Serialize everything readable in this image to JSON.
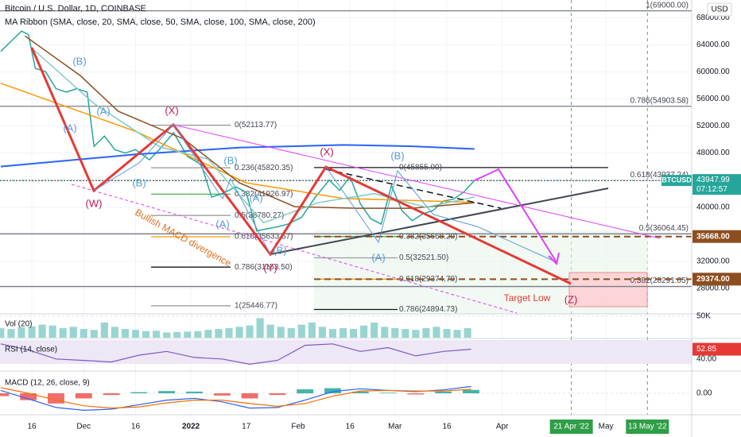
{
  "header": {
    "title": "Bitcoin / U.S. Dollar, 1D, COINBASE",
    "indicator": "MA Ribbon (SMA, close, 20, SMA, close, 50, SMA, close, 100, SMA, close, 200)",
    "currency": "USD"
  },
  "chart_data": [
    {
      "type": "line",
      "xlim": [
        -9.2,
        190.8
      ],
      "xticks": [
        {
          "value": 0,
          "label": "16"
        },
        {
          "value": 15,
          "label": "Dec"
        },
        {
          "value": 30,
          "label": "16"
        },
        {
          "value": 46,
          "label": "2022"
        },
        {
          "value": 62,
          "label": "17"
        },
        {
          "value": 77,
          "label": "Feb"
        },
        {
          "value": 92,
          "label": "16"
        },
        {
          "value": 105,
          "label": "Mar"
        },
        {
          "value": 120,
          "label": "16"
        },
        {
          "value": 136,
          "label": "Apr"
        },
        {
          "value": 166,
          "label": "May"
        }
      ],
      "x_highlights": [
        {
          "value": 156,
          "label": "21 Apr '22"
        },
        {
          "value": 178,
          "label": "13 May '22"
        }
      ],
      "ylim": [
        24250,
        70600
      ],
      "yticks": [
        {
          "value": 28000,
          "label": "28000.00"
        },
        {
          "value": 32000,
          "label": "32000.00"
        },
        {
          "value": 36000,
          "label": "36000.00"
        },
        {
          "value": 40000,
          "label": "40000.00"
        },
        {
          "value": 44000,
          "label": "44000.00"
        },
        {
          "value": 48000,
          "label": "48000.00"
        },
        {
          "value": 52000,
          "label": "52000.00"
        },
        {
          "value": 56000,
          "label": "56000.00"
        },
        {
          "value": 60000,
          "label": "60000.00"
        },
        {
          "value": 64000,
          "label": "64000.00"
        },
        {
          "value": 68000,
          "label": "68000.00"
        }
      ],
      "grid": true,
      "x": [
        -9,
        -6,
        -3,
        -1,
        1,
        4,
        7,
        10,
        13,
        16,
        18,
        21,
        24,
        27,
        30,
        34,
        37,
        41,
        45,
        49,
        52,
        55,
        59,
        62,
        65,
        68,
        71,
        74,
        78,
        82,
        86,
        89,
        92,
        95,
        98,
        101,
        104,
        107,
        110,
        113,
        116,
        119,
        122,
        125,
        128
      ],
      "price_label": "BTCUSD",
      "time_label": "07:12:57",
      "series": [
        {
          "name": "BTCUSD",
          "color": "#26a69a",
          "width": 1.5,
          "values": [
            63000,
            64500,
            66000,
            65500,
            60500,
            60000,
            57500,
            57000,
            57500,
            57000,
            49000,
            50500,
            48500,
            48000,
            48500,
            47000,
            48600,
            51000,
            47500,
            46300,
            41500,
            42000,
            43000,
            42200,
            36500,
            36800,
            37100,
            37500,
            38500,
            41500,
            44000,
            42500,
            44500,
            40500,
            38300,
            37500,
            43200,
            39500,
            38000,
            39000,
            39500,
            40900,
            41200,
            42300,
            43947.99
          ]
        },
        {
          "color": "#2962ff",
          "width": 2,
          "x": [
            -9,
            30,
            60,
            90,
            110,
            128
          ],
          "values": [
            46000,
            47800,
            48800,
            49200,
            49000,
            48600
          ]
        },
        {
          "color": "#ff9800",
          "width": 1.5,
          "x": [
            -9,
            30,
            62,
            90,
            128
          ],
          "values": [
            58300,
            51200,
            43600,
            41300,
            40700
          ]
        },
        {
          "color": "#8d4e1f",
          "width": 1.5,
          "x": [
            -2,
            14,
            25,
            44,
            60,
            76,
            94,
            110,
            128
          ],
          "values": [
            65300,
            59440,
            54160,
            50050,
            43600,
            40080,
            39850,
            39850,
            40670
          ]
        },
        {
          "color": "#80cbc4",
          "width": 1.5,
          "x": [
            0,
            18,
            37,
            51,
            67,
            83,
            99,
            114,
            128
          ],
          "values": [
            63500,
            55300,
            48900,
            47100,
            37700,
            40700,
            42000,
            40000,
            41500
          ]
        }
      ],
      "fib_levels": [
        {
          "label": "1(69000.00)",
          "value": 69000,
          "color": "#787b86"
        },
        {
          "label": "0.786(54903.58)",
          "value": 54903.58,
          "color": "#787b86"
        },
        {
          "label": "0.618(43937.24)",
          "value": 43937.24,
          "color": "#555555"
        },
        {
          "label": "0.5(36064.45)",
          "value": 36064.45,
          "color": "#787b86"
        },
        {
          "label": "0.382(28291.65)",
          "value": 28291.65,
          "color": "#787b86"
        },
        {
          "label": "0(52113.77)",
          "value": 52113.77,
          "color": "#9e9e9e"
        },
        {
          "label": "0.236(45820.35)",
          "value": 45820.35,
          "color": "#9e9e9e"
        },
        {
          "label": "0.382(41926.97)",
          "value": 41926.97,
          "color": "#4caf50"
        },
        {
          "label": "0.5(38780.27)",
          "value": 38780.27,
          "color": "#9e9e9e"
        },
        {
          "label": "0.618(35633.57)",
          "value": 35633.57,
          "color": "#ff9800"
        },
        {
          "label": "0.786(31153.50)",
          "value": 31153.5,
          "color": "#131722"
        },
        {
          "label": "1(25446.77)",
          "value": 25446.77,
          "color": "#9e9e9e"
        },
        {
          "label": "0(45855.00)",
          "value": 45855,
          "color": "#131722"
        },
        {
          "label": "0.382(35668.20)",
          "value": 35668.2,
          "color": "#4caf50"
        },
        {
          "label": "0.5(32521.50)",
          "value": 32521.5,
          "color": "#9e9e9e"
        },
        {
          "label": "0.618(29374.79)",
          "value": 29374.79,
          "color": "#ff9800"
        },
        {
          "label": "0.786(24894.73)",
          "value": 24894.73,
          "color": "#131722"
        }
      ],
      "level_labels": [
        {
          "value": 35668,
          "label": "35668.00"
        },
        {
          "value": 29374,
          "label": "29374.00"
        }
      ],
      "annotations": [
        "(B)",
        "(A)",
        "(A)",
        "(W)",
        "(B)",
        "(X)",
        "(B)",
        "(A)",
        "(A)",
        "(B)",
        "(Y)",
        "(X)",
        "(B)",
        "(A)",
        "(Z)",
        "Target Low",
        "Bullish MACD divergence"
      ]
    },
    {
      "type": "bar",
      "title": "Vol (20)",
      "color": "#80cbc4",
      "ylim": [
        0,
        55000
      ],
      "yticks": [
        {
          "value": 50000,
          "label": "50K"
        }
      ],
      "x": [
        -9,
        -6,
        -3,
        0,
        3,
        6,
        9,
        12,
        15,
        18,
        21,
        24,
        27,
        30,
        33,
        36,
        39,
        42,
        45,
        48,
        51,
        54,
        57,
        60,
        63,
        66,
        69,
        72,
        75,
        78,
        81,
        84,
        87,
        90,
        93,
        96,
        99,
        102,
        105,
        108,
        111,
        114,
        117,
        120,
        123,
        126
      ],
      "values": [
        22000,
        20000,
        24000,
        26000,
        30000,
        28000,
        22000,
        25000,
        20000,
        18000,
        35000,
        25000,
        20000,
        18000,
        15000,
        16000,
        12000,
        13000,
        14000,
        15000,
        18000,
        20000,
        22000,
        25000,
        28000,
        45000,
        30000,
        25000,
        22000,
        30000,
        35000,
        25000,
        20000,
        22000,
        20000,
        28000,
        35000,
        25000,
        22000,
        20000,
        18000,
        22000,
        25000,
        20000,
        18000,
        22000
      ]
    },
    {
      "type": "line",
      "title": "RSI (14, close)",
      "ylim": [
        25,
        65
      ],
      "yticks": [
        {
          "value": 40,
          "label": "40.00"
        }
      ],
      "x": [
        -9,
        -1,
        7,
        15,
        23,
        31,
        39,
        47,
        55,
        63,
        71,
        79,
        87,
        95,
        103,
        111,
        119,
        127
      ],
      "series": [
        {
          "color": "#7e57c2",
          "width": 1.2,
          "values": [
            60,
            52,
            40,
            38,
            36,
            45,
            50,
            42,
            40,
            33,
            38,
            58,
            60,
            50,
            55,
            44,
            50,
            52.85
          ]
        }
      ]
    },
    {
      "type": "combo",
      "title": "MACD (12, 26, close, 9)",
      "ylim": [
        -3500,
        3500
      ],
      "yticks": [
        {
          "value": 0,
          "label": "0.00"
        }
      ],
      "x": [
        -9,
        -1,
        7,
        15,
        23,
        31,
        39,
        47,
        55,
        63,
        71,
        79,
        87,
        95,
        103,
        111,
        119,
        127
      ],
      "series": [
        {
          "type": "bar",
          "color": "#26a69a",
          "negative_color": "#ef5350",
          "values": [
            -500,
            -1200,
            -1800,
            -900,
            -300,
            200,
            400,
            300,
            -400,
            -900,
            -300,
            700,
            900,
            300,
            100,
            -200,
            300,
            600
          ]
        },
        {
          "type": "line",
          "color": "#2962ff",
          "width": 1.2,
          "values": [
            500,
            -1000,
            -2500,
            -3000,
            -2800,
            -2000,
            -1200,
            -900,
            -1500,
            -2600,
            -2500,
            -1200,
            300,
            800,
            500,
            300,
            600,
            1200
          ]
        },
        {
          "type": "line",
          "color": "#ff6d00",
          "width": 1.2,
          "values": [
            1000,
            0,
            -1200,
            -2200,
            -2600,
            -2400,
            -1700,
            -1200,
            -1200,
            -1800,
            -2300,
            -1800,
            -500,
            400,
            500,
            400,
            400,
            700
          ]
        }
      ]
    }
  ]
}
